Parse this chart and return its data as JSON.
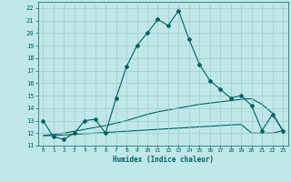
{
  "xlabel": "Humidex (Indice chaleur)",
  "bg_color": "#c0e8e8",
  "grid_color": "#a0cccc",
  "line_color": "#006060",
  "xlim": [
    -0.5,
    23.5
  ],
  "ylim": [
    11,
    22.5
  ],
  "xticks": [
    0,
    1,
    2,
    3,
    4,
    5,
    6,
    7,
    8,
    9,
    10,
    11,
    12,
    13,
    14,
    15,
    16,
    17,
    18,
    19,
    20,
    21,
    22,
    23
  ],
  "yticks": [
    11,
    12,
    13,
    14,
    15,
    16,
    17,
    18,
    19,
    20,
    21,
    22
  ],
  "line1_x": [
    0,
    1,
    2,
    3,
    4,
    5,
    6,
    7,
    8,
    9,
    10,
    11,
    12,
    13,
    14,
    15,
    16,
    17,
    18,
    19,
    20,
    21,
    22,
    23
  ],
  "line1_y": [
    13.0,
    11.7,
    11.5,
    12.0,
    13.0,
    13.1,
    12.0,
    14.8,
    17.3,
    19.0,
    20.0,
    21.1,
    20.6,
    21.8,
    19.5,
    17.5,
    16.2,
    15.5,
    14.8,
    15.0,
    14.2,
    12.2,
    13.5,
    12.2
  ],
  "line2_x": [
    0,
    1,
    2,
    3,
    4,
    5,
    6,
    7,
    8,
    9,
    10,
    11,
    12,
    13,
    14,
    15,
    16,
    17,
    18,
    19,
    20,
    21,
    22,
    23
  ],
  "line2_y": [
    11.8,
    11.8,
    11.85,
    11.9,
    11.95,
    12.0,
    12.05,
    12.1,
    12.15,
    12.2,
    12.25,
    12.3,
    12.35,
    12.4,
    12.45,
    12.5,
    12.55,
    12.6,
    12.65,
    12.7,
    12.0,
    12.0,
    12.0,
    12.2
  ],
  "line3_x": [
    0,
    1,
    2,
    3,
    4,
    5,
    6,
    7,
    8,
    9,
    10,
    11,
    12,
    13,
    14,
    15,
    16,
    17,
    18,
    19,
    20,
    21,
    22,
    23
  ],
  "line3_y": [
    11.8,
    11.9,
    12.0,
    12.15,
    12.3,
    12.45,
    12.6,
    12.8,
    13.0,
    13.25,
    13.5,
    13.7,
    13.85,
    14.0,
    14.15,
    14.3,
    14.4,
    14.5,
    14.6,
    14.7,
    14.75,
    14.3,
    13.6,
    12.2
  ],
  "markersize": 2.0,
  "linewidth": 0.8
}
